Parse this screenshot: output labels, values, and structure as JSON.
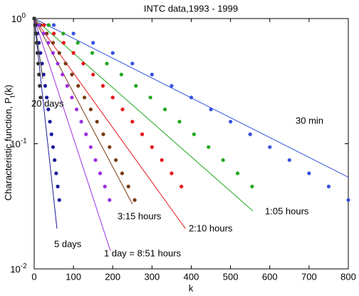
{
  "chart_data": {
    "type": "scatter",
    "title": "INTC data,1993 - 1999",
    "xlabel": "k",
    "ylabel": {
      "main": "Characteristic function, P",
      "sub": "t",
      "tail": "(k)"
    },
    "xlim": [
      0,
      800
    ],
    "xticks": [
      0,
      100,
      200,
      300,
      400,
      500,
      600,
      700,
      800
    ],
    "ylim": [
      0.01,
      1
    ],
    "log_y": true,
    "yticks": [
      {
        "value": 0.01,
        "label": "10",
        "exponent": "-2"
      },
      {
        "value": 0.1,
        "label": "10",
        "exponent": "-1"
      },
      {
        "value": 1,
        "label": "10",
        "exponent": "0"
      }
    ],
    "series": [
      {
        "name": "30 min",
        "color": "#3652e0",
        "x": [
          0,
          50,
          100,
          150,
          200,
          250,
          300,
          350,
          400,
          450,
          500,
          550,
          600,
          650,
          700,
          750,
          800
        ],
        "values": [
          1,
          0.887,
          0.759,
          0.64,
          0.531,
          0.437,
          0.357,
          0.29,
          0.234,
          0.188,
          0.15,
          0.119,
          0.094,
          0.074,
          0.058,
          0.0455,
          0.0355
        ],
        "fit_x": [
          0,
          800
        ],
        "fit_y": [
          1,
          0.054
        ]
      },
      {
        "name": "1:05 hours",
        "color": "#22a81e",
        "x": [
          0,
          37,
          74,
          111,
          148,
          185,
          222,
          259,
          296,
          333,
          370,
          407,
          444,
          481,
          518,
          555
        ],
        "values": [
          1,
          0.887,
          0.759,
          0.64,
          0.531,
          0.437,
          0.357,
          0.29,
          0.234,
          0.188,
          0.15,
          0.119,
          0.094,
          0.074,
          0.058,
          0.0455
        ],
        "fit_x": [
          0,
          557
        ],
        "fit_y": [
          1,
          0.029
        ]
      },
      {
        "name": "2:10 hours",
        "color": "#e8161a",
        "x": [
          0,
          25,
          50,
          75,
          100,
          125,
          150,
          175,
          200,
          225,
          250,
          275,
          300,
          325,
          350,
          375
        ],
        "values": [
          1,
          0.887,
          0.759,
          0.64,
          0.531,
          0.437,
          0.357,
          0.29,
          0.234,
          0.188,
          0.15,
          0.119,
          0.094,
          0.074,
          0.058,
          0.0455
        ],
        "fit_x": [
          0,
          385
        ],
        "fit_y": [
          1,
          0.021
        ]
      },
      {
        "name": "3:15 hours",
        "color": "#7a3a10",
        "x": [
          0,
          16,
          32,
          48,
          64,
          80,
          96,
          112,
          128,
          144,
          160,
          176,
          192,
          208,
          224,
          240,
          256
        ],
        "values": [
          1,
          0.887,
          0.759,
          0.64,
          0.531,
          0.437,
          0.357,
          0.29,
          0.234,
          0.188,
          0.15,
          0.119,
          0.094,
          0.074,
          0.058,
          0.0455,
          0.0355
        ],
        "fit_x": [
          0,
          250
        ],
        "fit_y": [
          1,
          0.033
        ]
      },
      {
        "name": "1 day = 8:51 hours",
        "color": "#9b30e0",
        "x": [
          0,
          12,
          24,
          36,
          48,
          60,
          72,
          84,
          96,
          108,
          120,
          132,
          144,
          156,
          168,
          180,
          192
        ],
        "values": [
          1,
          0.887,
          0.759,
          0.64,
          0.531,
          0.437,
          0.357,
          0.29,
          0.234,
          0.188,
          0.15,
          0.119,
          0.094,
          0.074,
          0.058,
          0.0455,
          0.0355
        ],
        "fit_x": [
          0,
          194
        ],
        "fit_y": [
          1,
          0.014
        ]
      },
      {
        "name": "5 days",
        "color": "#1a1a9a",
        "x": [
          0,
          4,
          8,
          12,
          16,
          20,
          24,
          28,
          32,
          36,
          40,
          44,
          48,
          52,
          56,
          60,
          64
        ],
        "values": [
          1,
          0.887,
          0.759,
          0.64,
          0.531,
          0.437,
          0.357,
          0.29,
          0.234,
          0.188,
          0.15,
          0.119,
          0.094,
          0.074,
          0.058,
          0.0455,
          0.0355
        ],
        "fit_x": [
          0,
          58
        ],
        "fit_y": [
          1,
          0.021
        ]
      },
      {
        "name": "20 days",
        "color": "#333333",
        "x": [
          0,
          2,
          4,
          6,
          8,
          10,
          12,
          14,
          16
        ],
        "values": [
          1,
          0.887,
          0.759,
          0.64,
          0.531,
          0.437,
          0.357,
          0.29,
          0.234
        ],
        "fit_x": [
          0,
          22
        ],
        "fit_y": [
          1,
          0.33
        ]
      }
    ]
  }
}
